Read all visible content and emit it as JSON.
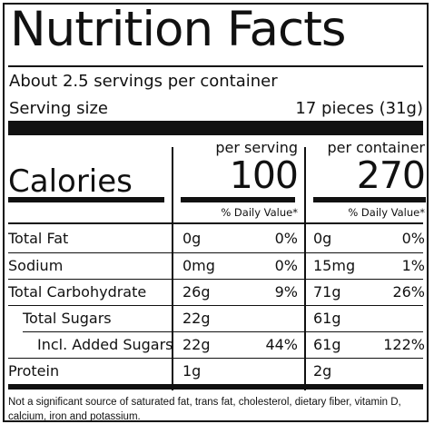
{
  "title": "Nutrition Facts",
  "servings_per_container": "About 2.5 servings per container",
  "serving_size_label": "Serving size",
  "serving_size_value": "17 pieces (31g)",
  "columns": {
    "per_serving_header": "per serving",
    "per_container_header": "per container"
  },
  "calories": {
    "label": "Calories",
    "per_serving": "100",
    "per_container": "270"
  },
  "daily_value_label": "% Daily Value*",
  "nutrients": [
    {
      "name": "Total Fat",
      "serving_amount": "0g",
      "serving_dv": "0%",
      "container_amount": "0g",
      "container_dv": "0%"
    },
    {
      "name": "Sodium",
      "serving_amount": "0mg",
      "serving_dv": "0%",
      "container_amount": "15mg",
      "container_dv": "1%"
    },
    {
      "name": "Total Carbohydrate",
      "serving_amount": "26g",
      "serving_dv": "9%",
      "container_amount": "71g",
      "container_dv": "26%"
    },
    {
      "name": "Total Sugars",
      "serving_amount": "22g",
      "serving_dv": "",
      "container_amount": "61g",
      "container_dv": ""
    },
    {
      "name": "Incl. Added Sugars",
      "serving_amount": "22g",
      "serving_dv": "44%",
      "container_amount": "61g",
      "container_dv": "122%"
    },
    {
      "name": "Protein",
      "serving_amount": "1g",
      "serving_dv": "",
      "container_amount": "2g",
      "container_dv": ""
    }
  ],
  "footnote": "Not a significant source of saturated fat, trans fat, cholesterol, dietary fiber, vitamin D, calcium, iron and potassium."
}
